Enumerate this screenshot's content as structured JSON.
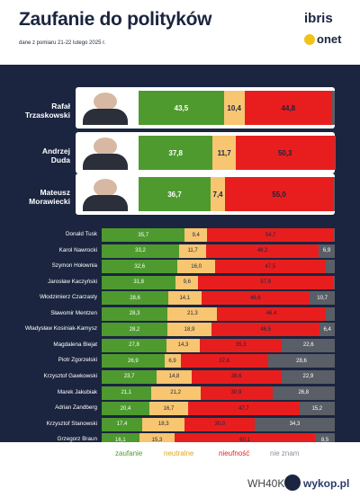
{
  "header": {
    "title": "Zaufanie do polityków",
    "subtitle": "dane z pomiaru 21-22 lutego 2025 r.",
    "logo_ibris": "ibris",
    "logo_onet": "onet"
  },
  "colors": {
    "panel_bg": "#1b2540",
    "zaufanie": "#4e9a2f",
    "neutralne": "#f8c571",
    "nieufnosc": "#e81e1e",
    "nie_znam": "#5a5e66"
  },
  "legend": [
    {
      "label": "zaufanie",
      "color": "#4e9a2f"
    },
    {
      "label": "neutralne",
      "color": "#e0a51b"
    },
    {
      "label": "nieufność",
      "color": "#e81e1e"
    },
    {
      "label": "nie znam",
      "color": "#8a8f99"
    }
  ],
  "footer": {
    "watermark": "WH40K  z",
    "site": "wykop.pl"
  },
  "chart_data": {
    "type": "bar",
    "stacked": true,
    "orientation": "horizontal",
    "title": "Zaufanie do polityków",
    "subtitle": "dane z pomiaru 21-22 lutego 2025 r.",
    "series_names": [
      "zaufanie",
      "neutralne",
      "nieufność",
      "nie znam"
    ],
    "featured": [
      {
        "name_line1": "Rafał",
        "name_line2": "Trzaskowski",
        "values": [
          43.5,
          10.4,
          44.8,
          1.3
        ],
        "labels": [
          "43,5",
          "10,4",
          "44,8",
          ""
        ]
      },
      {
        "name_line1": "Andrzej",
        "name_line2": "Duda",
        "values": [
          37.8,
          11.7,
          50.3,
          0.2
        ],
        "labels": [
          "37,8",
          "11,7",
          "50,3",
          ""
        ]
      },
      {
        "name_line1": "Mateusz",
        "name_line2": "Morawiecki",
        "values": [
          36.7,
          7.4,
          55.0,
          0.9
        ],
        "labels": [
          "36,7",
          "7,4",
          "55,0",
          ""
        ]
      }
    ],
    "politicians": [
      {
        "name": "Donald Tusk",
        "values": [
          35.7,
          9.4,
          54.7,
          0.2
        ],
        "labels": [
          "35,7",
          "9,4",
          "54,7",
          ""
        ]
      },
      {
        "name": "Karol Nawrocki",
        "values": [
          33.2,
          11.7,
          48.2,
          6.9
        ],
        "labels": [
          "33,2",
          "11,7",
          "48,2",
          "6,9"
        ]
      },
      {
        "name": "Szymon Hołownia",
        "values": [
          32.6,
          16.0,
          47.5,
          3.9
        ],
        "labels": [
          "32,6",
          "16,0",
          "47,5",
          ""
        ]
      },
      {
        "name": "Jarosław Kaczyński",
        "values": [
          31.8,
          9.6,
          57.9,
          0.7
        ],
        "labels": [
          "31,8",
          "9,6",
          "57,9",
          ""
        ]
      },
      {
        "name": "Włodzimierz Czarzasty",
        "values": [
          28.6,
          14.1,
          46.6,
          10.7
        ],
        "labels": [
          "28,6",
          "14,1",
          "46,6",
          "10,7"
        ]
      },
      {
        "name": "Sławomir Mentzen",
        "values": [
          28.3,
          21.3,
          46.4,
          4.0
        ],
        "labels": [
          "28,3",
          "21,3",
          "46,4",
          ""
        ]
      },
      {
        "name": "Władysław Kosiniak-Kamysz",
        "values": [
          28.2,
          18.9,
          46.5,
          6.4
        ],
        "labels": [
          "28,2",
          "18,9",
          "46,5",
          "6,4"
        ]
      },
      {
        "name": "Magdalena Biejat",
        "values": [
          27.8,
          14.3,
          35.3,
          22.6
        ],
        "labels": [
          "27,8",
          "14,3",
          "35,3",
          "22,6"
        ]
      },
      {
        "name": "Piotr Zgorzelski",
        "values": [
          26.9,
          6.9,
          37.6,
          28.6
        ],
        "labels": [
          "26,9",
          "6,9",
          "37,6",
          "28,6"
        ]
      },
      {
        "name": "Krzysztof Gawkowski",
        "values": [
          23.7,
          14.8,
          38.6,
          22.9
        ],
        "labels": [
          "23,7",
          "14,8",
          "38,6",
          "22,9"
        ]
      },
      {
        "name": "Marek Jakubiak",
        "values": [
          21.1,
          21.2,
          30.9,
          26.8
        ],
        "labels": [
          "21,1",
          "21,2",
          "30,9",
          "26,8"
        ]
      },
      {
        "name": "Adrian Zandberg",
        "values": [
          20.4,
          16.7,
          47.7,
          15.2
        ],
        "labels": [
          "20,4",
          "16,7",
          "47,7",
          "15,2"
        ]
      },
      {
        "name": "Krzysztof Stanowski",
        "values": [
          17.4,
          18.3,
          30.0,
          34.3
        ],
        "labels": [
          "17,4",
          "18,3",
          "30,0",
          "34,3"
        ]
      },
      {
        "name": "Grzegorz Braun",
        "values": [
          16.1,
          15.3,
          60.1,
          8.5
        ],
        "labels": [
          "16,1",
          "15,3",
          "60,1",
          "8,5"
        ]
      }
    ]
  }
}
